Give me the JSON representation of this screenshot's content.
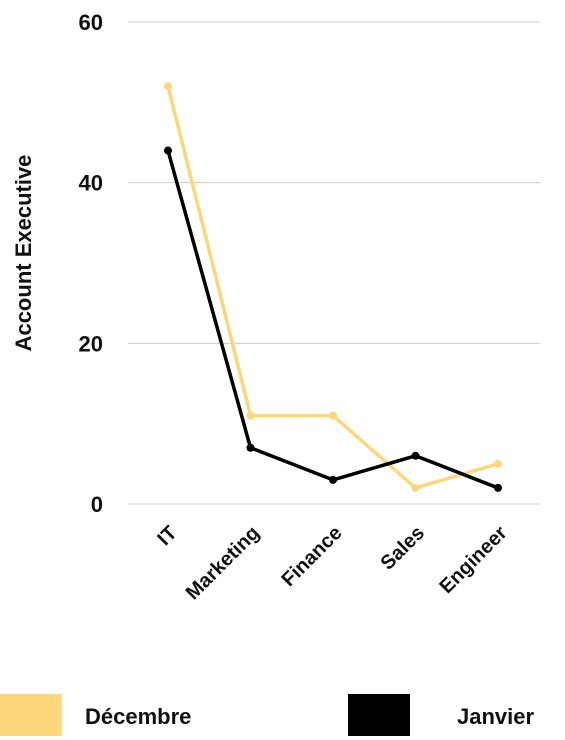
{
  "chart_data": {
    "type": "line",
    "categories": [
      "IT",
      "Marketing",
      "Finance",
      "Sales",
      "Engineer"
    ],
    "series": [
      {
        "name": "Décembre",
        "values": [
          52,
          11,
          11,
          2,
          5
        ],
        "color": "#fcd77b"
      },
      {
        "name": "Janvier",
        "values": [
          44,
          7,
          3,
          6,
          2
        ],
        "color": "#000000"
      }
    ],
    "title": "",
    "xlabel": "",
    "ylabel": "Account Executive",
    "ylim": [
      0,
      60
    ],
    "yticks": [
      0,
      20,
      40,
      60
    ],
    "grid": true,
    "legend_position": "bottom"
  }
}
